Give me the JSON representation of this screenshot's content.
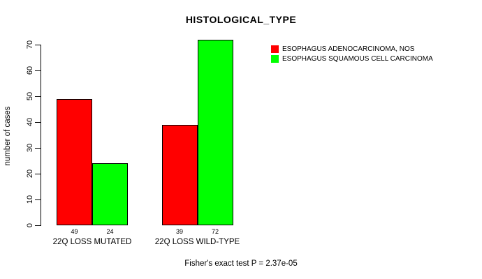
{
  "title": "HISTOLOGICAL_TYPE",
  "y_axis": {
    "label": "number of cases",
    "ticks": [
      0,
      10,
      20,
      30,
      40,
      50,
      60,
      70
    ]
  },
  "legend": {
    "items": [
      {
        "label": "ESOPHAGUS ADENOCARCINOMA, NOS",
        "color": "#ff0000"
      },
      {
        "label": "ESOPHAGUS SQUAMOUS CELL CARCINOMA",
        "color": "#00ff00"
      }
    ]
  },
  "footer": {
    "text": "Fisher's exact test P = 2.37e-05"
  },
  "colors": {
    "red": "#ff0000",
    "green": "#00ff00",
    "axis": "#000000",
    "background": "#ffffff"
  },
  "chart_data": {
    "type": "bar",
    "title": "HISTOLOGICAL_TYPE",
    "categories": [
      "22Q LOSS MUTATED",
      "22Q LOSS WILD-TYPE"
    ],
    "series": [
      {
        "name": "ESOPHAGUS ADENOCARCINOMA, NOS",
        "color": "#ff0000",
        "values": [
          49,
          39
        ]
      },
      {
        "name": "ESOPHAGUS SQUAMOUS CELL CARCINOMA",
        "color": "#00ff00",
        "values": [
          24,
          72
        ]
      }
    ],
    "bar_value_labels": [
      [
        49,
        24
      ],
      [
        39,
        72
      ]
    ],
    "xlabel": "",
    "ylabel": "number of cases",
    "ylim": [
      0,
      70
    ],
    "yticks": [
      0,
      10,
      20,
      30,
      40,
      50,
      60,
      70
    ],
    "grid": false,
    "legend_position": "top-right",
    "annotation": "Fisher's exact test P = 2.37e-05"
  }
}
